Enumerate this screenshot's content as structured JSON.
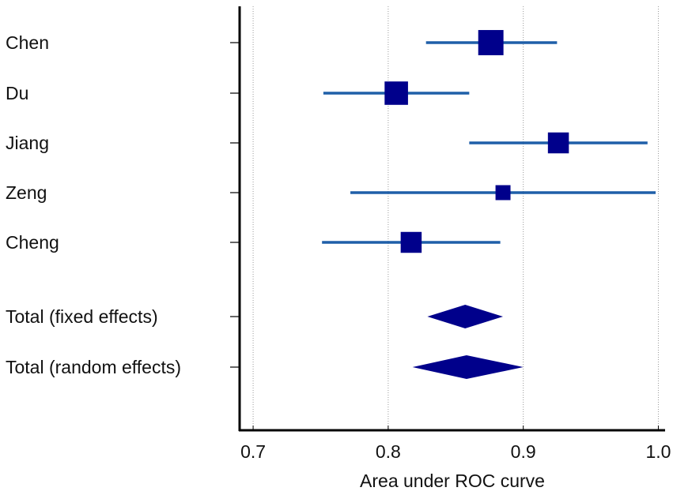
{
  "chart_data": {
    "type": "forest",
    "title": "",
    "xlabel": "Area under ROC curve",
    "xlim": [
      0.69,
      1.005
    ],
    "xticks": [
      0.7,
      0.8,
      0.9,
      1.0
    ],
    "xtick_labels": [
      "0.7",
      "0.8",
      "0.9",
      "1.0"
    ],
    "grid": "vertical dotted",
    "colors": {
      "marker": "#00008b",
      "ci_line": "#1f5fa8",
      "axis": "#000000",
      "grid": "#9a9a9a"
    },
    "studies": [
      {
        "name": "Chen",
        "estimate": 0.876,
        "lower": 0.828,
        "upper": 0.925,
        "weight": 0.3
      },
      {
        "name": "Du",
        "estimate": 0.806,
        "lower": 0.752,
        "upper": 0.86,
        "weight": 0.24
      },
      {
        "name": "Jiang",
        "estimate": 0.926,
        "lower": 0.86,
        "upper": 0.992,
        "weight": 0.17
      },
      {
        "name": "Zeng",
        "estimate": 0.885,
        "lower": 0.772,
        "upper": 0.998,
        "weight": 0.05
      },
      {
        "name": "Cheng",
        "estimate": 0.817,
        "lower": 0.751,
        "upper": 0.883,
        "weight": 0.17
      }
    ],
    "summaries": [
      {
        "name": "Total (fixed effects)",
        "estimate": 0.857,
        "lower": 0.829,
        "upper": 0.885
      },
      {
        "name": "Total (random effects)",
        "estimate": 0.858,
        "lower": 0.818,
        "upper": 0.9
      }
    ]
  }
}
